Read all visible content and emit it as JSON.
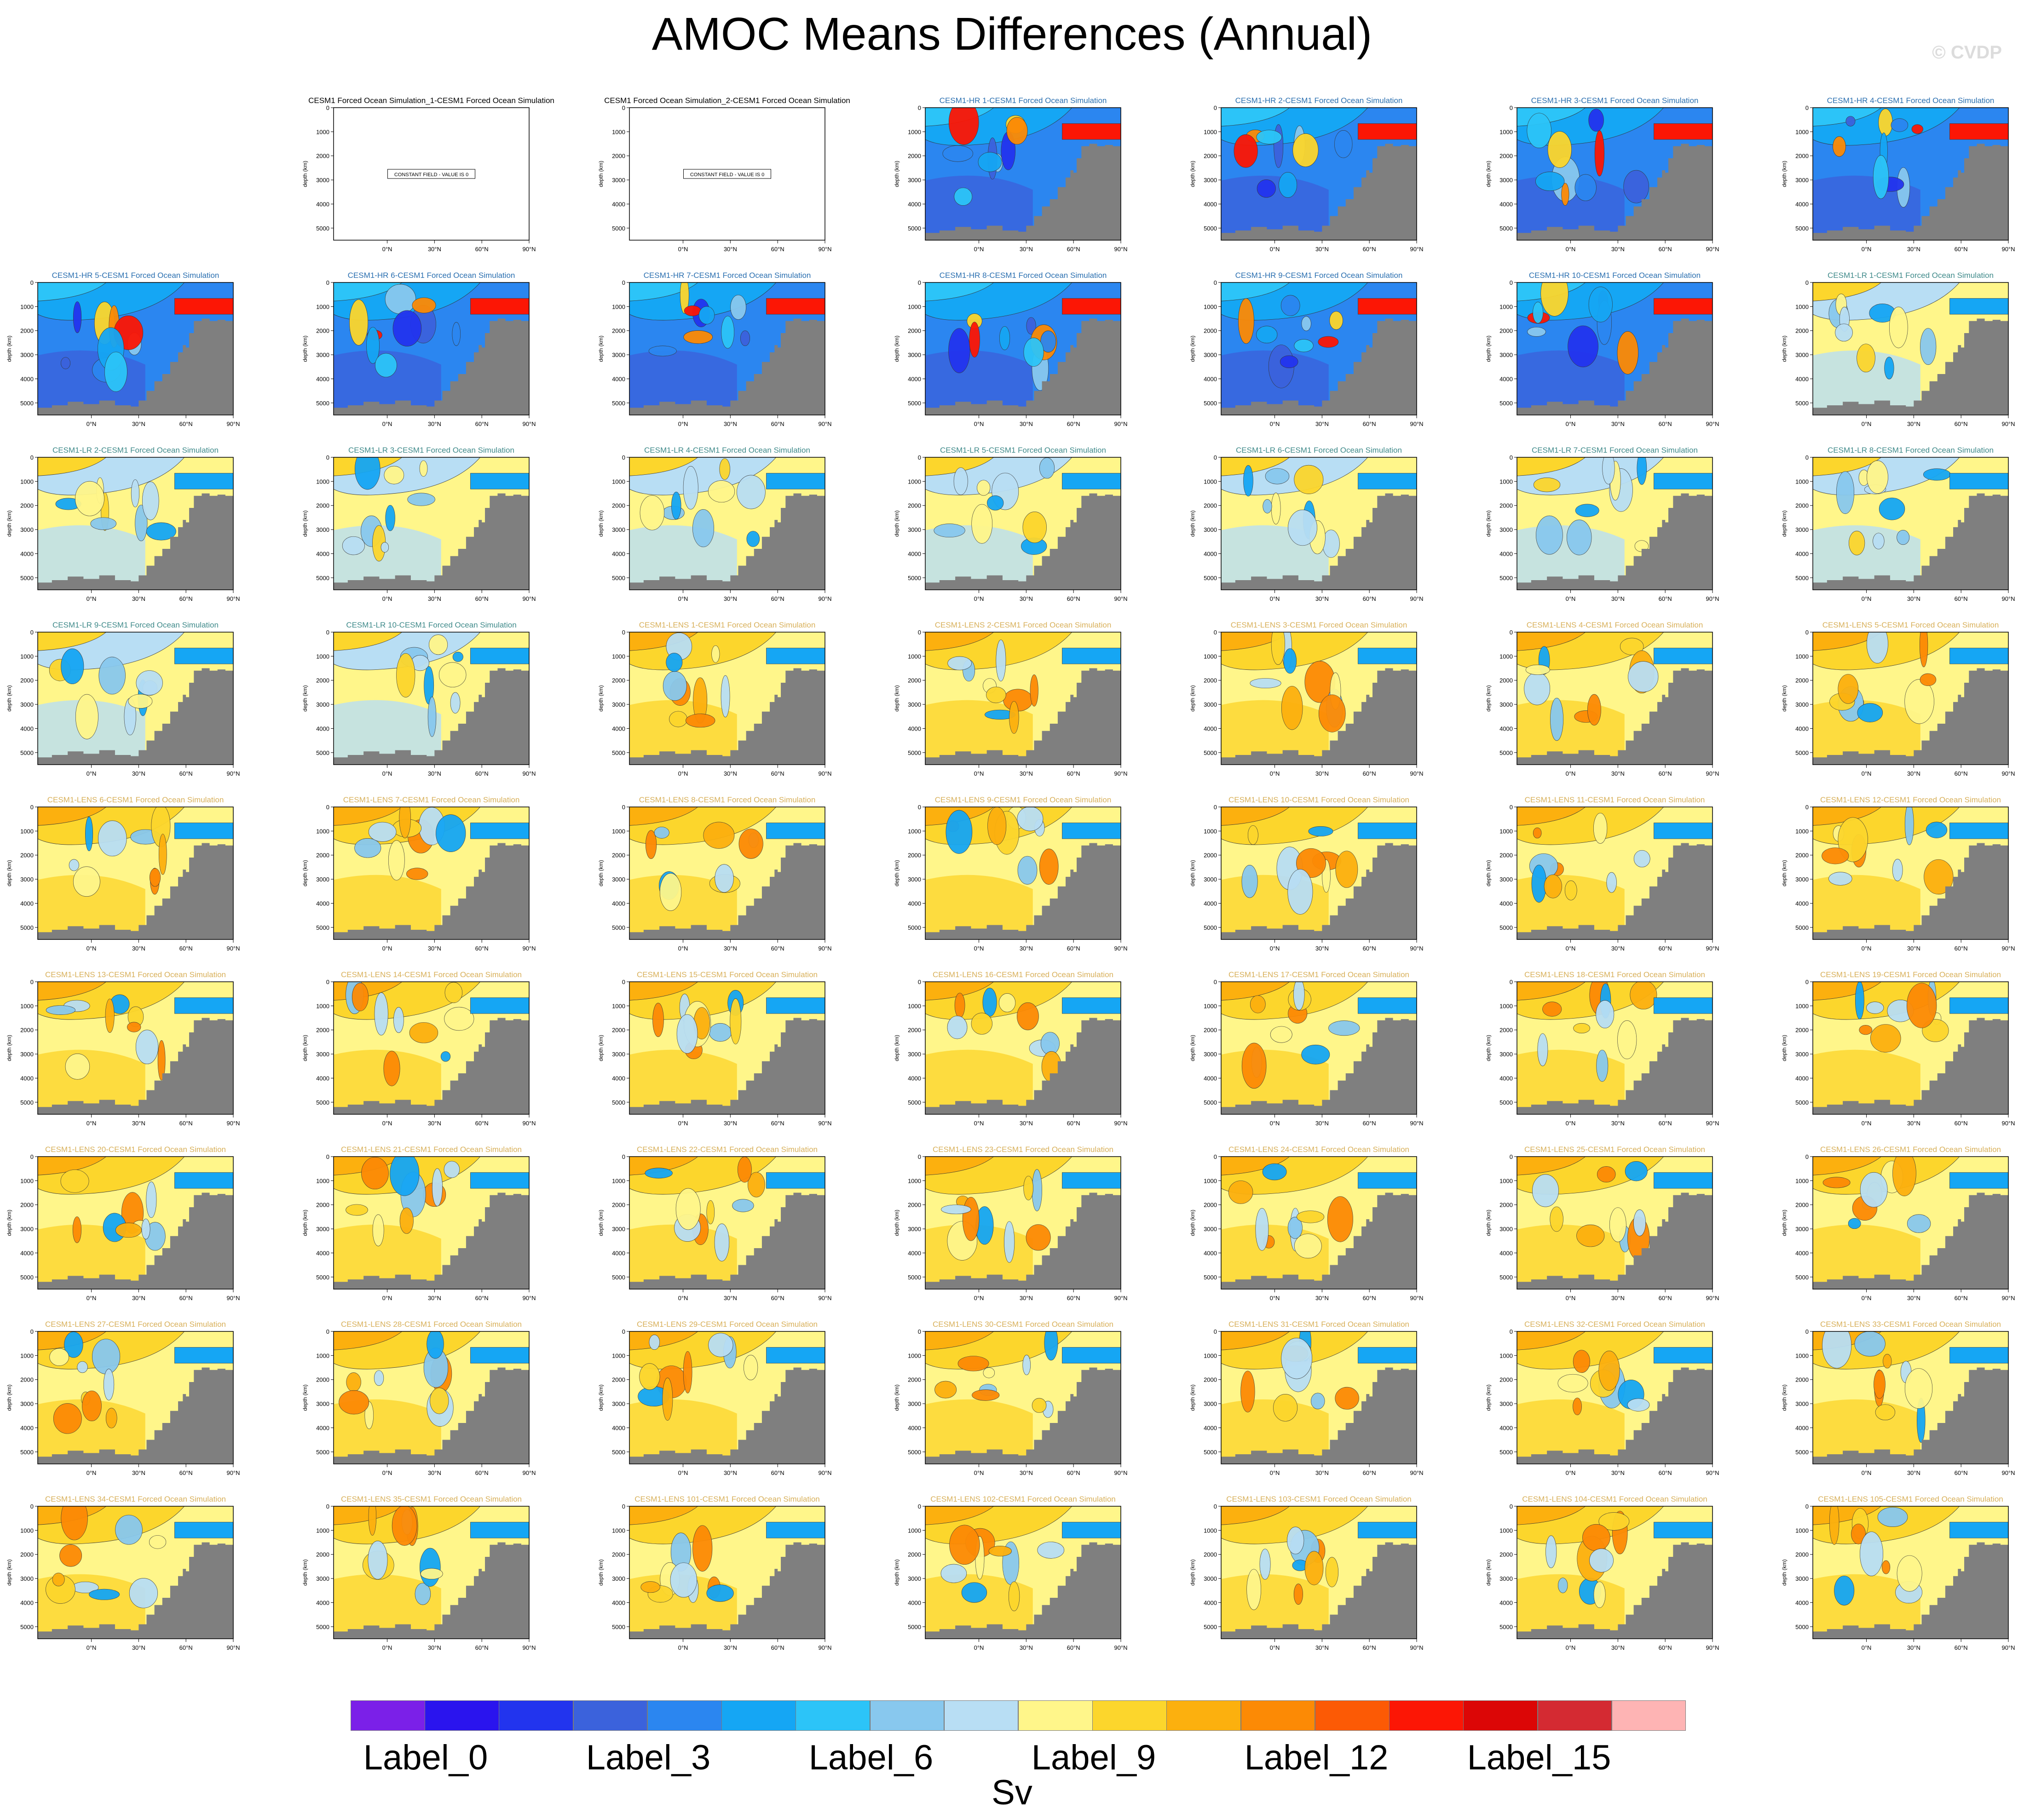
{
  "title": "AMOC Means Differences (Annual)",
  "watermark": "© CVDP",
  "chart_data": {
    "type": "heatmap",
    "layout": {
      "columns": 7
    },
    "shared_axes": {
      "ylabel": "depth (km)",
      "ylim": [
        5500,
        0
      ],
      "yticks": [
        "0",
        "1000",
        "2000",
        "3000",
        "4000",
        "5000"
      ],
      "xlim": [
        -34,
        90
      ],
      "xticks": [
        "0°N",
        "30°N",
        "60°N",
        "90°N"
      ]
    },
    "colorbar": {
      "units": "Sv",
      "colors": [
        "#7b20e8",
        "#2a14ee",
        "#2234ee",
        "#3b62dc",
        "#2b86f0",
        "#15a6f4",
        "#2cc4f8",
        "#88c8ee",
        "#b8def4",
        "#fff68a",
        "#fcd62c",
        "#fcb00e",
        "#fc8a05",
        "#fc5a05",
        "#fc1605",
        "#dc0606",
        "#d42a32",
        "#feb4b4"
      ],
      "labels": [
        "Label_0",
        "Label_3",
        "Label_6",
        "Label_9",
        "Label_12",
        "Label_15"
      ]
    },
    "panels": [
      {
        "title": "",
        "style": "empty"
      },
      {
        "title": "CESM1 Forced Ocean Simulation_1-CESM1 Forced Ocean Simulation",
        "title_color": "#000000",
        "style": "constant",
        "note": "CONSTANT FIELD - VALUE IS 0"
      },
      {
        "title": "CESM1 Forced Ocean Simulation_2-CESM1 Forced Ocean Simulation",
        "title_color": "#000000",
        "style": "constant",
        "note": "CONSTANT FIELD - VALUE IS 0"
      },
      {
        "title": "CESM1-HR 1-CESM1 Forced Ocean Simulation",
        "title_color": "#2a6fb0",
        "style": "hr"
      },
      {
        "title": "CESM1-HR 2-CESM1 Forced Ocean Simulation",
        "title_color": "#2a6fb0",
        "style": "hr"
      },
      {
        "title": "CESM1-HR 3-CESM1 Forced Ocean Simulation",
        "title_color": "#2a6fb0",
        "style": "hr"
      },
      {
        "title": "CESM1-HR 4-CESM1 Forced Ocean Simulation",
        "title_color": "#2a6fb0",
        "style": "hr"
      },
      {
        "title": "CESM1-HR 5-CESM1 Forced Ocean Simulation",
        "title_color": "#2a6fb0",
        "style": "hr"
      },
      {
        "title": "CESM1-HR 6-CESM1 Forced Ocean Simulation",
        "title_color": "#2a6fb0",
        "style": "hr"
      },
      {
        "title": "CESM1-HR 7-CESM1 Forced Ocean Simulation",
        "title_color": "#2a6fb0",
        "style": "hr"
      },
      {
        "title": "CESM1-HR 8-CESM1 Forced Ocean Simulation",
        "title_color": "#2a6fb0",
        "style": "hr"
      },
      {
        "title": "CESM1-HR 9-CESM1 Forced Ocean Simulation",
        "title_color": "#2a6fb0",
        "style": "hr"
      },
      {
        "title": "CESM1-HR 10-CESM1 Forced Ocean Simulation",
        "title_color": "#2a6fb0",
        "style": "hr"
      },
      {
        "title": "CESM1-LR 1-CESM1 Forced Ocean Simulation",
        "title_color": "#3f8a8a",
        "style": "lr"
      },
      {
        "title": "CESM1-LR 2-CESM1 Forced Ocean Simulation",
        "title_color": "#3f8a8a",
        "style": "lr"
      },
      {
        "title": "CESM1-LR 3-CESM1 Forced Ocean Simulation",
        "title_color": "#3f8a8a",
        "style": "lr"
      },
      {
        "title": "CESM1-LR 4-CESM1 Forced Ocean Simulation",
        "title_color": "#3f8a8a",
        "style": "lr"
      },
      {
        "title": "CESM1-LR 5-CESM1 Forced Ocean Simulation",
        "title_color": "#3f8a8a",
        "style": "lr"
      },
      {
        "title": "CESM1-LR 6-CESM1 Forced Ocean Simulation",
        "title_color": "#3f8a8a",
        "style": "lr"
      },
      {
        "title": "CESM1-LR 7-CESM1 Forced Ocean Simulation",
        "title_color": "#3f8a8a",
        "style": "lr"
      },
      {
        "title": "CESM1-LR 8-CESM1 Forced Ocean Simulation",
        "title_color": "#3f8a8a",
        "style": "lr"
      },
      {
        "title": "CESM1-LR 9-CESM1 Forced Ocean Simulation",
        "title_color": "#3f8a8a",
        "style": "lr"
      },
      {
        "title": "CESM1-LR 10-CESM1 Forced Ocean Simulation",
        "title_color": "#3f8a8a",
        "style": "lr"
      },
      {
        "title": "CESM1-LENS 1-CESM1 Forced Ocean Simulation",
        "title_color": "#d8b05a",
        "style": "lens"
      },
      {
        "title": "CESM1-LENS 2-CESM1 Forced Ocean Simulation",
        "title_color": "#d8b05a",
        "style": "lens"
      },
      {
        "title": "CESM1-LENS 3-CESM1 Forced Ocean Simulation",
        "title_color": "#d8b05a",
        "style": "lens"
      },
      {
        "title": "CESM1-LENS 4-CESM1 Forced Ocean Simulation",
        "title_color": "#d8b05a",
        "style": "lens"
      },
      {
        "title": "CESM1-LENS 5-CESM1 Forced Ocean Simulation",
        "title_color": "#d8b05a",
        "style": "lens"
      },
      {
        "title": "CESM1-LENS 6-CESM1 Forced Ocean Simulation",
        "title_color": "#d8b05a",
        "style": "lens"
      },
      {
        "title": "CESM1-LENS 7-CESM1 Forced Ocean Simulation",
        "title_color": "#d8b05a",
        "style": "lens"
      },
      {
        "title": "CESM1-LENS 8-CESM1 Forced Ocean Simulation",
        "title_color": "#d8b05a",
        "style": "lens"
      },
      {
        "title": "CESM1-LENS 9-CESM1 Forced Ocean Simulation",
        "title_color": "#d8b05a",
        "style": "lens"
      },
      {
        "title": "CESM1-LENS 10-CESM1 Forced Ocean Simulation",
        "title_color": "#d8b05a",
        "style": "lens"
      },
      {
        "title": "CESM1-LENS 11-CESM1 Forced Ocean Simulation",
        "title_color": "#d8b05a",
        "style": "lens"
      },
      {
        "title": "CESM1-LENS 12-CESM1 Forced Ocean Simulation",
        "title_color": "#d8b05a",
        "style": "lens"
      },
      {
        "title": "CESM1-LENS 13-CESM1 Forced Ocean Simulation",
        "title_color": "#d8b05a",
        "style": "lens"
      },
      {
        "title": "CESM1-LENS 14-CESM1 Forced Ocean Simulation",
        "title_color": "#d8b05a",
        "style": "lens"
      },
      {
        "title": "CESM1-LENS 15-CESM1 Forced Ocean Simulation",
        "title_color": "#d8b05a",
        "style": "lens"
      },
      {
        "title": "CESM1-LENS 16-CESM1 Forced Ocean Simulation",
        "title_color": "#d8b05a",
        "style": "lens"
      },
      {
        "title": "CESM1-LENS 17-CESM1 Forced Ocean Simulation",
        "title_color": "#d8b05a",
        "style": "lens"
      },
      {
        "title": "CESM1-LENS 18-CESM1 Forced Ocean Simulation",
        "title_color": "#d8b05a",
        "style": "lens"
      },
      {
        "title": "CESM1-LENS 19-CESM1 Forced Ocean Simulation",
        "title_color": "#d8b05a",
        "style": "lens"
      },
      {
        "title": "CESM1-LENS 20-CESM1 Forced Ocean Simulation",
        "title_color": "#d8b05a",
        "style": "lens"
      },
      {
        "title": "CESM1-LENS 21-CESM1 Forced Ocean Simulation",
        "title_color": "#d8b05a",
        "style": "lens"
      },
      {
        "title": "CESM1-LENS 22-CESM1 Forced Ocean Simulation",
        "title_color": "#d8b05a",
        "style": "lens"
      },
      {
        "title": "CESM1-LENS 23-CESM1 Forced Ocean Simulation",
        "title_color": "#d8b05a",
        "style": "lens"
      },
      {
        "title": "CESM1-LENS 24-CESM1 Forced Ocean Simulation",
        "title_color": "#d8b05a",
        "style": "lens"
      },
      {
        "title": "CESM1-LENS 25-CESM1 Forced Ocean Simulation",
        "title_color": "#d8b05a",
        "style": "lens"
      },
      {
        "title": "CESM1-LENS 26-CESM1 Forced Ocean Simulation",
        "title_color": "#d8b05a",
        "style": "lens"
      },
      {
        "title": "CESM1-LENS 27-CESM1 Forced Ocean Simulation",
        "title_color": "#d8b05a",
        "style": "lens"
      },
      {
        "title": "CESM1-LENS 28-CESM1 Forced Ocean Simulation",
        "title_color": "#d8b05a",
        "style": "lens"
      },
      {
        "title": "CESM1-LENS 29-CESM1 Forced Ocean Simulation",
        "title_color": "#d8b05a",
        "style": "lens"
      },
      {
        "title": "CESM1-LENS 30-CESM1 Forced Ocean Simulation",
        "title_color": "#d8b05a",
        "style": "lens"
      },
      {
        "title": "CESM1-LENS 31-CESM1 Forced Ocean Simulation",
        "title_color": "#d8b05a",
        "style": "lens"
      },
      {
        "title": "CESM1-LENS 32-CESM1 Forced Ocean Simulation",
        "title_color": "#d8b05a",
        "style": "lens"
      },
      {
        "title": "CESM1-LENS 33-CESM1 Forced Ocean Simulation",
        "title_color": "#d8b05a",
        "style": "lens"
      },
      {
        "title": "CESM1-LENS 34-CESM1 Forced Ocean Simulation",
        "title_color": "#d8b05a",
        "style": "lens"
      },
      {
        "title": "CESM1-LENS 35-CESM1 Forced Ocean Simulation",
        "title_color": "#d8b05a",
        "style": "lens"
      },
      {
        "title": "CESM1-LENS 101-CESM1 Forced Ocean Simulation",
        "title_color": "#d8b05a",
        "style": "lens"
      },
      {
        "title": "CESM1-LENS 102-CESM1 Forced Ocean Simulation",
        "title_color": "#d8b05a",
        "style": "lens"
      },
      {
        "title": "CESM1-LENS 103-CESM1 Forced Ocean Simulation",
        "title_color": "#d8b05a",
        "style": "lens"
      },
      {
        "title": "CESM1-LENS 104-CESM1 Forced Ocean Simulation",
        "title_color": "#d8b05a",
        "style": "lens"
      },
      {
        "title": "CESM1-LENS 105-CESM1 Forced Ocean Simulation",
        "title_color": "#d8b05a",
        "style": "lens"
      }
    ],
    "styles": {
      "hr": {
        "colors": [
          "#2b86f0",
          "#15a6f4",
          "#2cc4f8",
          "#88c8ee",
          "#3b62dc",
          "#2234ee",
          "#fcd62c",
          "#fc8a05",
          "#fc1605"
        ],
        "background": "#2b86f0",
        "deep": "#3b62dc"
      },
      "lr": {
        "colors": [
          "#fff68a",
          "#b8def4",
          "#fcd62c",
          "#88c8ee",
          "#15a6f4"
        ],
        "background": "#fff68a",
        "deep": "#b8def4"
      },
      "lens": {
        "colors": [
          "#fff68a",
          "#fcd62c",
          "#fcb00e",
          "#fc8a05",
          "#b8def4",
          "#88c8ee",
          "#15a6f4"
        ],
        "background": "#fff68a",
        "deep": "#fcd62c"
      }
    },
    "bathymetry_depth_km": [
      [
        -34,
        5200
      ],
      [
        -25,
        5100
      ],
      [
        -15,
        4950
      ],
      [
        -5,
        5050
      ],
      [
        5,
        4900
      ],
      [
        15,
        5100
      ],
      [
        25,
        5150
      ],
      [
        30,
        4900
      ],
      [
        35,
        4500
      ],
      [
        40,
        4100
      ],
      [
        45,
        3800
      ],
      [
        50,
        3300
      ],
      [
        55,
        2900
      ],
      [
        58,
        2600
      ],
      [
        60,
        2700
      ],
      [
        62,
        2100
      ],
      [
        65,
        1600
      ],
      [
        70,
        1500
      ],
      [
        75,
        1600
      ],
      [
        80,
        1550
      ],
      [
        85,
        1600
      ],
      [
        90,
        1600
      ]
    ]
  }
}
